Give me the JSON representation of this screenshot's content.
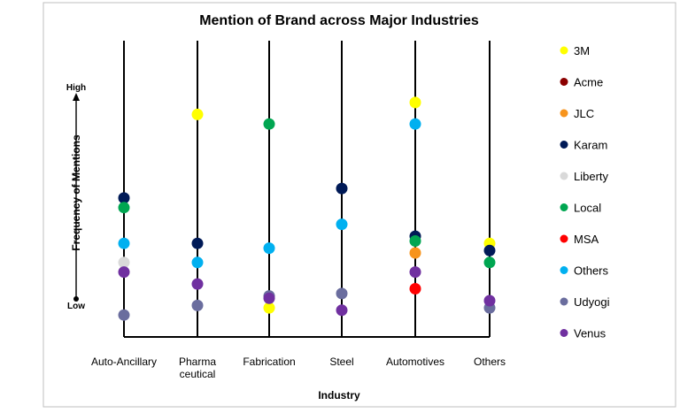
{
  "chart_data": {
    "type": "scatter",
    "title": "Mention of Brand across Major Industries",
    "xlabel": "Industry",
    "ylabel": "Frequency of Mentions",
    "y_high_label": "High",
    "y_low_label": "Low",
    "ylim": [
      0,
      100
    ],
    "grid": false,
    "legend_position": "right",
    "categories": [
      {
        "lines": [
          "Auto-Ancillary"
        ]
      },
      {
        "lines": [
          "Pharma",
          "ceutical"
        ]
      },
      {
        "lines": [
          "Fabrication"
        ]
      },
      {
        "lines": [
          "Steel"
        ]
      },
      {
        "lines": [
          "Automotives"
        ]
      },
      {
        "lines": [
          "Others"
        ]
      }
    ],
    "series": [
      {
        "name": "3M",
        "color": "#ffff00",
        "values": [
          null,
          88,
          7,
          null,
          93,
          34
        ]
      },
      {
        "name": "Acme",
        "color": "#8b0000",
        "values": [
          null,
          null,
          null,
          null,
          null,
          null
        ]
      },
      {
        "name": "JLC",
        "color": "#f7941d",
        "values": [
          null,
          null,
          null,
          null,
          30,
          null
        ]
      },
      {
        "name": "Karam",
        "color": "#001a57",
        "values": [
          53,
          34,
          null,
          57,
          37,
          31
        ]
      },
      {
        "name": "Liberty",
        "color": "#d9d9d9",
        "values": [
          26,
          null,
          null,
          null,
          null,
          null
        ]
      },
      {
        "name": "Local",
        "color": "#00a651",
        "values": [
          49,
          null,
          84,
          null,
          35,
          26
        ]
      },
      {
        "name": "MSA",
        "color": "#ff0000",
        "values": [
          null,
          null,
          null,
          null,
          15,
          null
        ]
      },
      {
        "name": "Others",
        "color": "#00b0f0",
        "values": [
          34,
          26,
          32,
          42,
          84,
          null
        ]
      },
      {
        "name": "Udyogi",
        "color": "#6a6d9e",
        "values": [
          4,
          8,
          12,
          13,
          null,
          7
        ]
      },
      {
        "name": "Venus",
        "color": "#7030a0",
        "values": [
          22,
          17,
          11,
          6,
          22,
          10
        ]
      }
    ]
  }
}
